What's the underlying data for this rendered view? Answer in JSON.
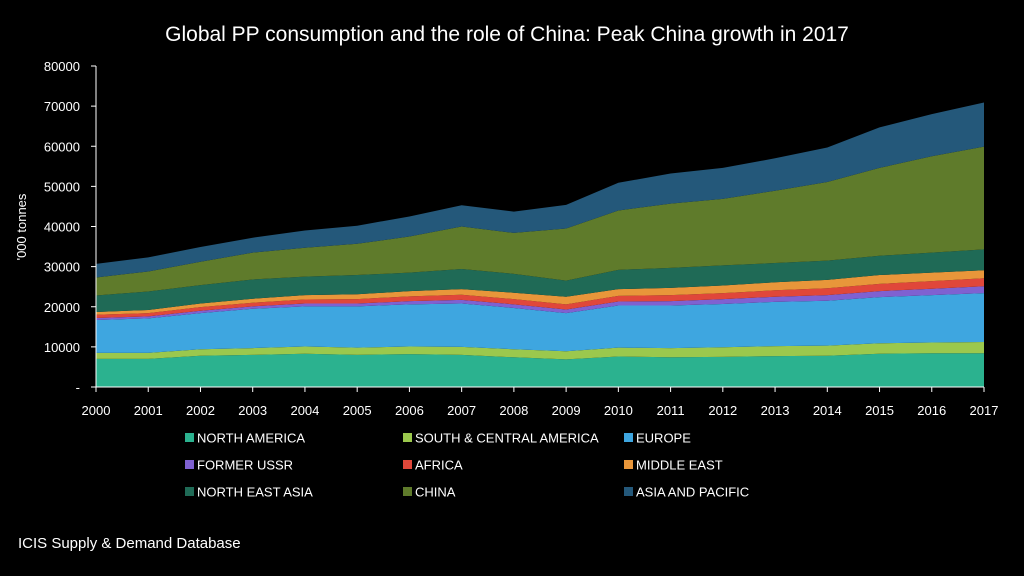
{
  "chart_data": {
    "type": "area",
    "stacked": true,
    "title": "Global PP consumption and the role of China: Peak China growth in 2017",
    "ylabel": "'000 tonnes",
    "xlabel": "",
    "ylim": [
      0,
      80000
    ],
    "yticks": [
      0,
      10000,
      20000,
      30000,
      40000,
      50000,
      60000,
      70000,
      80000
    ],
    "ytick_labels": [
      "-",
      "10000",
      "20000",
      "30000",
      "40000",
      "50000",
      "60000",
      "70000",
      "80000"
    ],
    "x": [
      "2000",
      "2001",
      "2002",
      "2003",
      "2004",
      "2005",
      "2006",
      "2007",
      "2008",
      "2009",
      "2010",
      "2011",
      "2012",
      "2013",
      "2014",
      "2015",
      "2016",
      "2017"
    ],
    "legend_position": "bottom",
    "series": [
      {
        "name": "NORTH AMERICA",
        "color": "#2bb28f",
        "values": [
          7000,
          7000,
          7800,
          8000,
          8300,
          8000,
          8200,
          8000,
          7400,
          6900,
          7600,
          7400,
          7500,
          7700,
          7800,
          8300,
          8400,
          8400
        ]
      },
      {
        "name": "SOUTH & CENTRAL AMERICA",
        "color": "#9bc84d",
        "values": [
          1500,
          1500,
          1600,
          1700,
          1800,
          1800,
          1900,
          2000,
          2000,
          2000,
          2200,
          2300,
          2400,
          2500,
          2500,
          2600,
          2700,
          2800
        ]
      },
      {
        "name": "EUROPE",
        "color": "#3ea6e0",
        "values": [
          8200,
          8600,
          9000,
          9800,
          10000,
          10300,
          10500,
          10800,
          10300,
          9500,
          10500,
          10600,
          10800,
          11000,
          11200,
          11500,
          11800,
          12200
        ]
      },
      {
        "name": "FORMER USSR",
        "color": "#7f61d1",
        "values": [
          500,
          500,
          600,
          600,
          700,
          700,
          800,
          900,
          900,
          900,
          1000,
          1100,
          1200,
          1300,
          1400,
          1500,
          1600,
          1700
        ]
      },
      {
        "name": "AFRICA",
        "color": "#e0473a",
        "values": [
          800,
          800,
          900,
          900,
          1000,
          1100,
          1200,
          1300,
          1300,
          1300,
          1400,
          1500,
          1500,
          1600,
          1700,
          1800,
          1900,
          2000
        ]
      },
      {
        "name": "MIDDLE EAST",
        "color": "#e8963a",
        "values": [
          700,
          800,
          900,
          1000,
          1100,
          1200,
          1300,
          1400,
          1600,
          1900,
          1700,
          1800,
          1900,
          2000,
          2100,
          2200,
          2100,
          2000
        ]
      },
      {
        "name": "NORTH EAST ASIA",
        "color": "#1f6a56",
        "values": [
          4100,
          4600,
          4600,
          4800,
          4600,
          4800,
          4600,
          5000,
          4700,
          4000,
          4800,
          5000,
          5000,
          4800,
          4800,
          4800,
          5000,
          5200
        ]
      },
      {
        "name": "CHINA",
        "color": "#5f7b2b",
        "values": [
          4500,
          5000,
          5800,
          6700,
          7200,
          7800,
          9000,
          10600,
          10200,
          13000,
          14800,
          16000,
          16600,
          18000,
          19600,
          21900,
          24000,
          25600
        ]
      },
      {
        "name": "ASIA AND PACIFIC",
        "color": "#24587a",
        "values": [
          3400,
          3500,
          3700,
          3700,
          4300,
          4500,
          5000,
          5300,
          5300,
          5900,
          6900,
          7500,
          7700,
          8100,
          8600,
          10100,
          10500,
          11000
        ]
      }
    ]
  },
  "source_note": "ICIS Supply & Demand Database"
}
